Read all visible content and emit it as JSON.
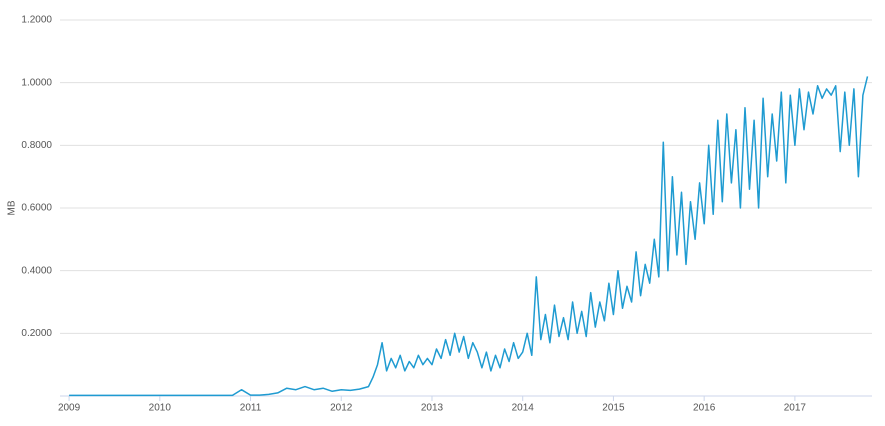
{
  "chart_data": {
    "type": "line",
    "y_label": "MB",
    "x": [
      2009.0,
      2009.1,
      2009.2,
      2009.3,
      2009.4,
      2009.5,
      2009.6,
      2009.7,
      2009.8,
      2009.9,
      2010.0,
      2010.1,
      2010.2,
      2010.3,
      2010.4,
      2010.5,
      2010.6,
      2010.7,
      2010.8,
      2010.9,
      2011.0,
      2011.1,
      2011.2,
      2011.3,
      2011.4,
      2011.5,
      2011.6,
      2011.7,
      2011.8,
      2011.9,
      2012.0,
      2012.1,
      2012.2,
      2012.3,
      2012.35,
      2012.4,
      2012.45,
      2012.5,
      2012.55,
      2012.6,
      2012.65,
      2012.7,
      2012.75,
      2012.8,
      2012.85,
      2012.9,
      2012.95,
      2013.0,
      2013.05,
      2013.1,
      2013.15,
      2013.2,
      2013.25,
      2013.3,
      2013.35,
      2013.4,
      2013.45,
      2013.5,
      2013.55,
      2013.6,
      2013.65,
      2013.7,
      2013.75,
      2013.8,
      2013.85,
      2013.9,
      2013.95,
      2014.0,
      2014.05,
      2014.1,
      2014.15,
      2014.2,
      2014.25,
      2014.3,
      2014.35,
      2014.4,
      2014.45,
      2014.5,
      2014.55,
      2014.6,
      2014.65,
      2014.7,
      2014.75,
      2014.8,
      2014.85,
      2014.9,
      2014.95,
      2015.0,
      2015.05,
      2015.1,
      2015.15,
      2015.2,
      2015.25,
      2015.3,
      2015.35,
      2015.4,
      2015.45,
      2015.5,
      2015.55,
      2015.6,
      2015.65,
      2015.7,
      2015.75,
      2015.8,
      2015.85,
      2015.9,
      2015.95,
      2016.0,
      2016.05,
      2016.1,
      2016.15,
      2016.2,
      2016.25,
      2016.3,
      2016.35,
      2016.4,
      2016.45,
      2016.5,
      2016.55,
      2016.6,
      2016.65,
      2016.7,
      2016.75,
      2016.8,
      2016.85,
      2016.9,
      2016.95,
      2017.0,
      2017.05,
      2017.1,
      2017.15,
      2017.2,
      2017.25,
      2017.3,
      2017.35,
      2017.4,
      2017.45,
      2017.5,
      2017.55,
      2017.6,
      2017.65,
      2017.7,
      2017.75,
      2017.8
    ],
    "series": [
      {
        "color": "#1f9bd1",
        "values": [
          0.002,
          0.002,
          0.002,
          0.002,
          0.002,
          0.002,
          0.002,
          0.002,
          0.002,
          0.002,
          0.002,
          0.002,
          0.002,
          0.002,
          0.002,
          0.002,
          0.002,
          0.002,
          0.002,
          0.02,
          0.003,
          0.003,
          0.005,
          0.01,
          0.025,
          0.02,
          0.03,
          0.02,
          0.025,
          0.015,
          0.02,
          0.018,
          0.022,
          0.03,
          0.06,
          0.1,
          0.17,
          0.08,
          0.12,
          0.09,
          0.13,
          0.08,
          0.11,
          0.09,
          0.13,
          0.1,
          0.12,
          0.1,
          0.15,
          0.12,
          0.18,
          0.13,
          0.2,
          0.14,
          0.19,
          0.12,
          0.17,
          0.14,
          0.09,
          0.14,
          0.08,
          0.13,
          0.09,
          0.15,
          0.11,
          0.17,
          0.12,
          0.14,
          0.2,
          0.13,
          0.38,
          0.18,
          0.26,
          0.17,
          0.29,
          0.19,
          0.25,
          0.18,
          0.3,
          0.2,
          0.27,
          0.19,
          0.33,
          0.22,
          0.3,
          0.24,
          0.36,
          0.26,
          0.4,
          0.28,
          0.35,
          0.3,
          0.46,
          0.32,
          0.42,
          0.36,
          0.5,
          0.38,
          0.81,
          0.4,
          0.7,
          0.45,
          0.65,
          0.42,
          0.62,
          0.5,
          0.68,
          0.55,
          0.8,
          0.58,
          0.88,
          0.62,
          0.9,
          0.68,
          0.85,
          0.6,
          0.92,
          0.66,
          0.88,
          0.6,
          0.95,
          0.7,
          0.9,
          0.75,
          0.97,
          0.68,
          0.96,
          0.8,
          0.98,
          0.85,
          0.97,
          0.9,
          0.99,
          0.95,
          0.98,
          0.96,
          0.99,
          0.78,
          0.97,
          0.8,
          0.98,
          0.7,
          0.96,
          1.02
        ]
      }
    ],
    "xlim": [
      2008.9,
      2017.85
    ],
    "xticks": [
      2009,
      2010,
      2011,
      2012,
      2013,
      2014,
      2015,
      2016,
      2017
    ],
    "ylim": [
      0,
      1.2
    ],
    "yticks": [
      {
        "value": 0.2,
        "label": "0.2000"
      },
      {
        "value": 0.4,
        "label": "0.4000"
      },
      {
        "value": 0.6,
        "label": "0.6000"
      },
      {
        "value": 0.8,
        "label": "0.8000"
      },
      {
        "value": 1.0,
        "label": "1.0000"
      },
      {
        "value": 1.2,
        "label": "1.2000"
      }
    ],
    "grid": true
  }
}
